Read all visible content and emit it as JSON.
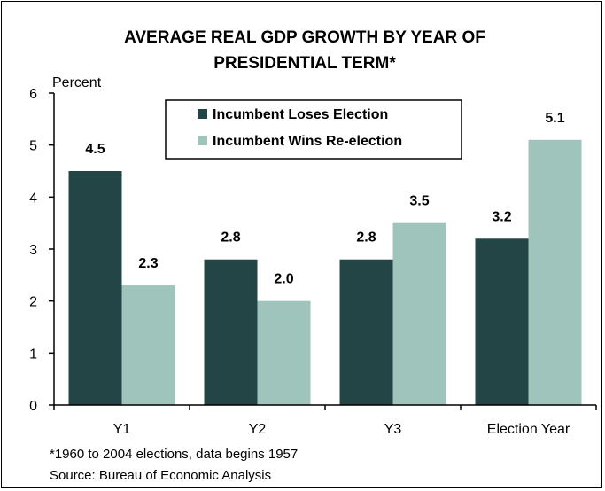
{
  "chart_data": {
    "type": "bar",
    "title": [
      "AVERAGE REAL GDP GROWTH BY YEAR OF",
      "PRESIDENTIAL TERM*"
    ],
    "ylabel": "Percent",
    "xlabel": "",
    "categories": [
      "Y1",
      "Y2",
      "Y3",
      "Election Year"
    ],
    "series": [
      {
        "name": "Incumbent Loses Election",
        "values": [
          4.5,
          2.8,
          2.8,
          3.2
        ],
        "labels": [
          "4.5",
          "2.8",
          "2.8",
          "3.2"
        ],
        "color": "#234545"
      },
      {
        "name": "Incumbent Wins Re-election",
        "values": [
          2.3,
          2.0,
          3.5,
          5.1
        ],
        "labels": [
          "2.3",
          "2.0",
          "3.5",
          "5.1"
        ],
        "color": "#9fc4bb"
      }
    ],
    "ylim": [
      0,
      6
    ],
    "yticks": [
      "0",
      "1",
      "2",
      "3",
      "4",
      "5",
      "6"
    ],
    "grid": false,
    "legend_position": "top-center",
    "footnotes": [
      "*1960 to 2004 elections, data begins 1957",
      "Source: Bureau of Economic Analysis"
    ]
  }
}
